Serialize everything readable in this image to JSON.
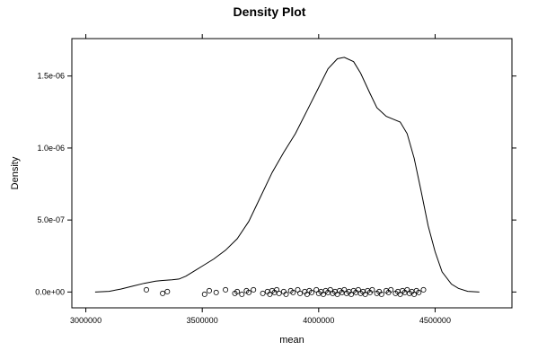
{
  "chart_data": {
    "type": "line",
    "title": "Density Plot",
    "xlabel": "mean",
    "ylabel": "Density",
    "xlim": [
      2940000,
      4830000
    ],
    "ylim": [
      -1.1e-07,
      1.76e-06
    ],
    "x_ticks": [
      3000000,
      3500000,
      4000000,
      4500000
    ],
    "x_tick_labels": [
      "3000000",
      "3500000",
      "4000000",
      "4500000"
    ],
    "y_ticks": [
      0,
      5e-07,
      1e-06,
      1.5e-06
    ],
    "y_tick_labels": [
      "0.0e+00",
      "5.0e-07",
      "1.0e-06",
      "1.5e-06"
    ],
    "grid": false,
    "series": [
      {
        "x": [
          3040000,
          3100000,
          3150000,
          3200000,
          3250000,
          3300000,
          3330000,
          3370000,
          3400000,
          3430000,
          3470000,
          3500000,
          3550000,
          3600000,
          3650000,
          3700000,
          3750000,
          3800000,
          3850000,
          3900000,
          3950000,
          4000000,
          4040000,
          4080000,
          4110000,
          4150000,
          4180000,
          4220000,
          4250000,
          4290000,
          4320000,
          4350000,
          4380000,
          4410000,
          4440000,
          4470000,
          4500000,
          4530000,
          4570000,
          4600000,
          4640000,
          4690000
        ],
        "y": [
          0.0,
          5e-09,
          2e-08,
          4e-08,
          6e-08,
          7.5e-08,
          8e-08,
          8.5e-08,
          9e-08,
          1.1e-07,
          1.5e-07,
          1.8e-07,
          2.3e-07,
          2.9e-07,
          3.7e-07,
          4.9e-07,
          6.6e-07,
          8.3e-07,
          9.7e-07,
          1.1e-06,
          1.26e-06,
          1.42e-06,
          1.55e-06,
          1.62e-06,
          1.63e-06,
          1.6e-06,
          1.52e-06,
          1.38e-06,
          1.28e-06,
          1.22e-06,
          1.2e-06,
          1.18e-06,
          1.1e-06,
          9.3e-07,
          7e-07,
          4.6e-07,
          2.8e-07,
          1.4e-07,
          5.5e-08,
          2.5e-08,
          5e-09,
          0.0
        ]
      }
    ],
    "rug": [
      3260000,
      3330000,
      3350000,
      3510000,
      3530000,
      3560000,
      3600000,
      3640000,
      3650000,
      3670000,
      3690000,
      3700000,
      3720000,
      3760000,
      3780000,
      3790000,
      3800000,
      3810000,
      3820000,
      3830000,
      3850000,
      3860000,
      3880000,
      3890000,
      3910000,
      3920000,
      3940000,
      3950000,
      3960000,
      3970000,
      3990000,
      4000000,
      4010000,
      4020000,
      4030000,
      4040000,
      4050000,
      4060000,
      4070000,
      4080000,
      4090000,
      4100000,
      4110000,
      4120000,
      4130000,
      4140000,
      4150000,
      4160000,
      4170000,
      4180000,
      4190000,
      4200000,
      4210000,
      4220000,
      4230000,
      4250000,
      4260000,
      4270000,
      4290000,
      4300000,
      4310000,
      4330000,
      4340000,
      4350000,
      4360000,
      4370000,
      4380000,
      4390000,
      4400000,
      4410000,
      4420000,
      4430000,
      4450000
    ]
  }
}
